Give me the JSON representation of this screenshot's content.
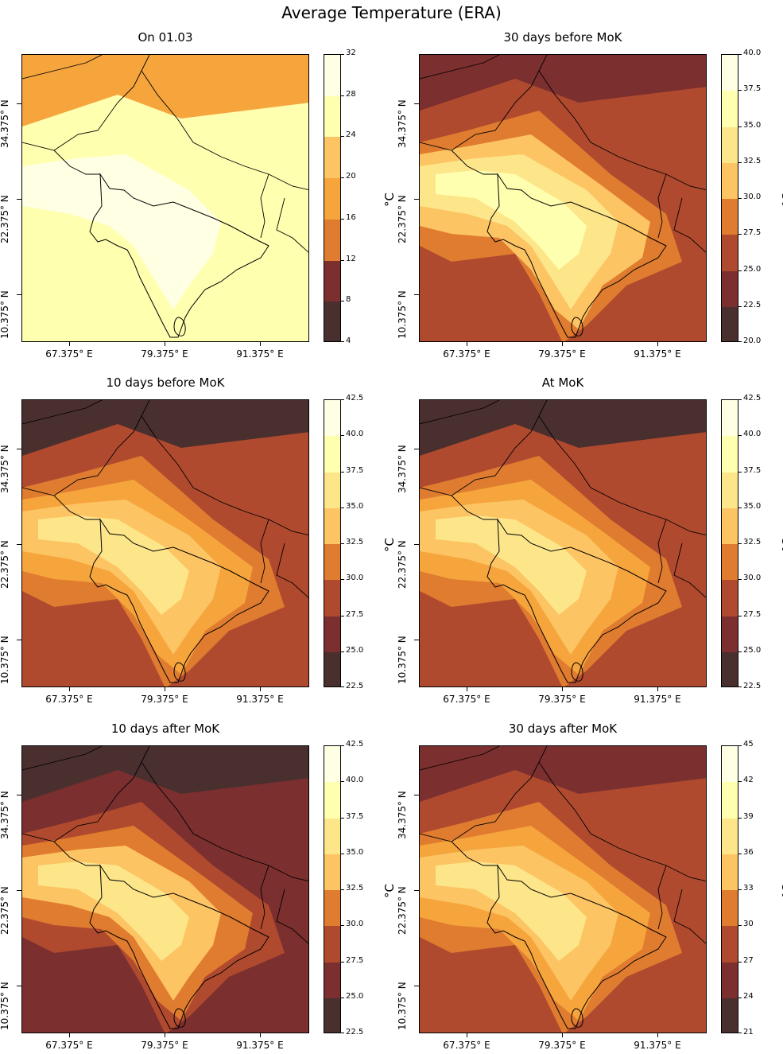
{
  "figure": {
    "title": "Average Temperature (ERA)",
    "x_tick_labels": [
      "67.375° E",
      "79.375° E",
      "91.375° E"
    ],
    "y_tick_labels": [
      "34.375° N",
      "22.375° N",
      "10.375° N"
    ],
    "colorbar_unit": "°C",
    "palette": [
      "#4a2f2f",
      "#7b2f2f",
      "#b04a2f",
      "#e07c2f",
      "#f6a53d",
      "#fcc463",
      "#fde68a",
      "#ffffb0",
      "#ffffe4"
    ]
  },
  "panels": [
    {
      "title": "On 01.03",
      "cbar_ticks": [
        "32",
        "28",
        "24",
        "20",
        "16",
        "12",
        "8",
        "4"
      ]
    },
    {
      "title": "30 days before MoK",
      "cbar_ticks": [
        "40.0",
        "37.5",
        "35.0",
        "32.5",
        "30.0",
        "27.5",
        "25.0",
        "22.5",
        "20.0"
      ]
    },
    {
      "title": "10 days before MoK",
      "cbar_ticks": [
        "42.5",
        "40.0",
        "37.5",
        "35.0",
        "32.5",
        "30.0",
        "27.5",
        "25.0",
        "22.5"
      ]
    },
    {
      "title": "At MoK",
      "cbar_ticks": [
        "42.5",
        "40.0",
        "37.5",
        "35.0",
        "32.5",
        "30.0",
        "27.5",
        "25.0",
        "22.5"
      ]
    },
    {
      "title": "10 days after MoK",
      "cbar_ticks": [
        "42.5",
        "40.0",
        "37.5",
        "35.0",
        "32.5",
        "30.0",
        "27.5",
        "25.0",
        "22.5"
      ]
    },
    {
      "title": "30 days after MoK",
      "cbar_ticks": [
        "45",
        "42",
        "39",
        "36",
        "33",
        "30",
        "27",
        "24",
        "21"
      ]
    }
  ]
}
